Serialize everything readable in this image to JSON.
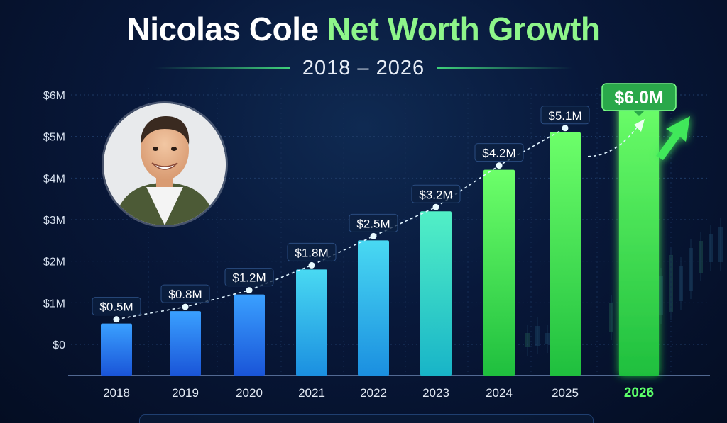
{
  "title_part1": "Nicolas Cole",
  "title_part2": "Net Worth Growth",
  "subtitle": "2018 – 2026",
  "colors": {
    "title_accent": "#8ef58a",
    "bar_blue": "#1f6ff0",
    "bar_cyan": "#2bc6e6",
    "bar_green": "#3ee85a",
    "highlight_badge": "#2aa84a"
  },
  "chart_data": {
    "type": "bar",
    "title": "Nicolas Cole Net Worth Growth",
    "subtitle": "2018 – 2026",
    "categories": [
      "2018",
      "2019",
      "2020",
      "2021",
      "2022",
      "2023",
      "2024",
      "2025",
      "2026"
    ],
    "values": [
      0.5,
      0.8,
      1.2,
      1.8,
      2.5,
      3.2,
      4.2,
      5.1,
      6.0
    ],
    "data_labels": [
      "$0.5M",
      "$0.8M",
      "$1.2M",
      "$1.8M",
      "$2.5M",
      "$3.2M",
      "$4.2M",
      "$5.1M",
      "$6.0M"
    ],
    "y_ticks": [
      "$0",
      "$1M",
      "$2M",
      "$3M",
      "$4M",
      "$5M",
      "$6M"
    ],
    "y_tick_values": [
      0,
      1,
      2,
      3,
      4,
      5,
      6
    ],
    "ylim": [
      0,
      6
    ],
    "grid": true,
    "highlight_category": "2026",
    "trend_line": "dashed",
    "trend_arrow": "up-right"
  }
}
